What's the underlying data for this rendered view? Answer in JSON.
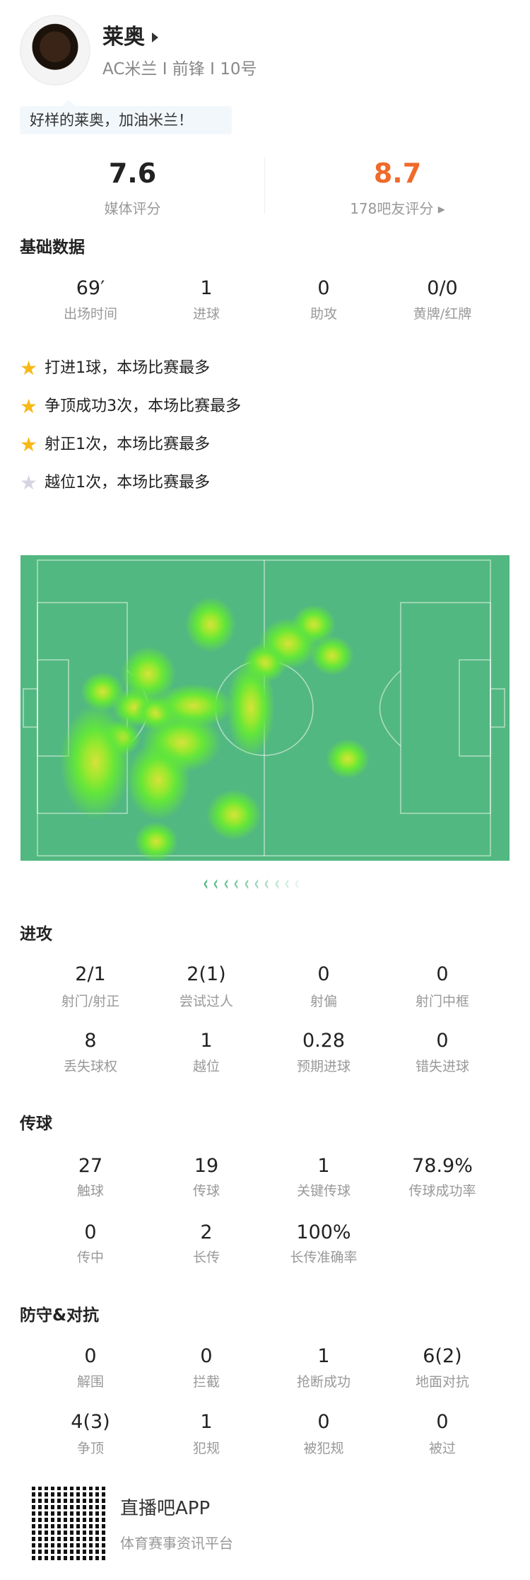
{
  "player": {
    "name": "莱奥",
    "subtitle": "AC米兰 I 前锋 I 10号",
    "comment": "好样的莱奥，加油米兰！"
  },
  "ratings": {
    "media": {
      "value": "7.6",
      "label": "媒体评分"
    },
    "fans": {
      "value": "8.7",
      "label": "178吧友评分",
      "color": "#f06a2a"
    }
  },
  "basic": {
    "title": "基础数据",
    "items": [
      {
        "v": "69′",
        "l": "出场时间"
      },
      {
        "v": "1",
        "l": "进球"
      },
      {
        "v": "0",
        "l": "助攻"
      },
      {
        "v": "0/0",
        "l": "黄牌/红牌"
      }
    ]
  },
  "highlights": [
    {
      "text": "打进1球，本场比赛最多",
      "icon": "star-gold"
    },
    {
      "text": "争顶成功3次，本场比赛最多",
      "icon": "star-gold"
    },
    {
      "text": "射正1次，本场比赛最多",
      "icon": "star-gold"
    },
    {
      "text": "越位1次，本场比赛最多",
      "icon": "star-silver"
    }
  ],
  "attack": {
    "title": "进攻",
    "items": [
      {
        "v": "2/1",
        "l": "射门/射正"
      },
      {
        "v": "2(1)",
        "l": "尝试过人"
      },
      {
        "v": "0",
        "l": "射偏"
      },
      {
        "v": "0",
        "l": "射门中框"
      },
      {
        "v": "8",
        "l": "丢失球权"
      },
      {
        "v": "1",
        "l": "越位"
      },
      {
        "v": "0.28",
        "l": "预期进球"
      },
      {
        "v": "0",
        "l": "错失进球"
      }
    ]
  },
  "passing": {
    "title": "传球",
    "items": [
      {
        "v": "27",
        "l": "触球"
      },
      {
        "v": "19",
        "l": "传球"
      },
      {
        "v": "1",
        "l": "关键传球"
      },
      {
        "v": "78.9%",
        "l": "传球成功率"
      },
      {
        "v": "0",
        "l": "传中"
      },
      {
        "v": "2",
        "l": "长传"
      },
      {
        "v": "100%",
        "l": "长传准确率"
      }
    ]
  },
  "defense": {
    "title": "防守&对抗",
    "items": [
      {
        "v": "0",
        "l": "解围"
      },
      {
        "v": "0",
        "l": "拦截"
      },
      {
        "v": "1",
        "l": "抢断成功"
      },
      {
        "v": "6(2)",
        "l": "地面对抗"
      },
      {
        "v": "4(3)",
        "l": "争顶"
      },
      {
        "v": "1",
        "l": "犯规"
      },
      {
        "v": "0",
        "l": "被犯规"
      },
      {
        "v": "0",
        "l": "被过"
      }
    ]
  },
  "footer": {
    "app": "直播吧APP",
    "slogan": "体育赛事资讯平台"
  }
}
